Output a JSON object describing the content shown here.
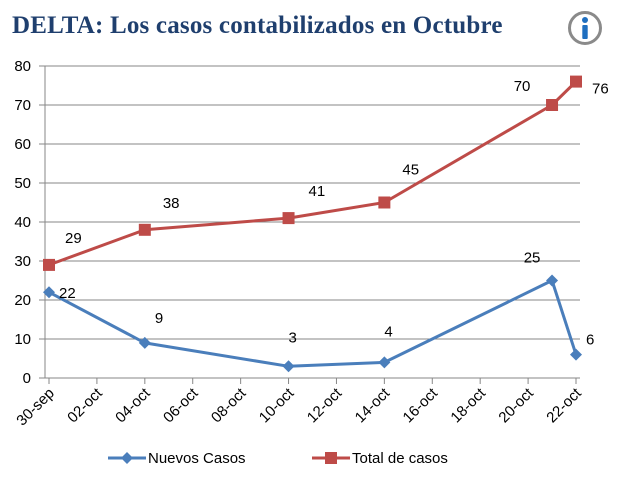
{
  "title": "DELTA: Los casos contabilizados  en Octubre",
  "info_icon": "info-icon",
  "chart_data": {
    "type": "line",
    "x_tick_labels": [
      "30-sep",
      "02-oct",
      "04-oct",
      "06-oct",
      "08-oct",
      "10-oct",
      "12-oct",
      "14-oct",
      "16-oct",
      "18-oct",
      "20-oct",
      "22-oct"
    ],
    "ylim": [
      0,
      80
    ],
    "y_ticks": [
      "0",
      "10",
      "20",
      "30",
      "40",
      "50",
      "60",
      "70",
      "80"
    ],
    "grid": true,
    "legend_position": "bottom",
    "series": [
      {
        "name": "Nuevos Casos",
        "color": "#4a7ebb",
        "marker": "diamond",
        "x": [
          "30-sep",
          "04-oct",
          "10-oct",
          "14-oct",
          "21-oct",
          "22-oct"
        ],
        "values": [
          22,
          9,
          3,
          4,
          25,
          6
        ],
        "labels": [
          "22",
          "9",
          "3",
          "4",
          "25",
          "6"
        ]
      },
      {
        "name": "Total de casos",
        "color": "#be4b48",
        "marker": "square",
        "x": [
          "30-sep",
          "04-oct",
          "10-oct",
          "14-oct",
          "21-oct",
          "22-oct"
        ],
        "values": [
          29,
          38,
          41,
          45,
          70,
          76
        ],
        "labels": [
          "29",
          "38",
          "41",
          "45",
          "70",
          "76"
        ]
      }
    ]
  }
}
